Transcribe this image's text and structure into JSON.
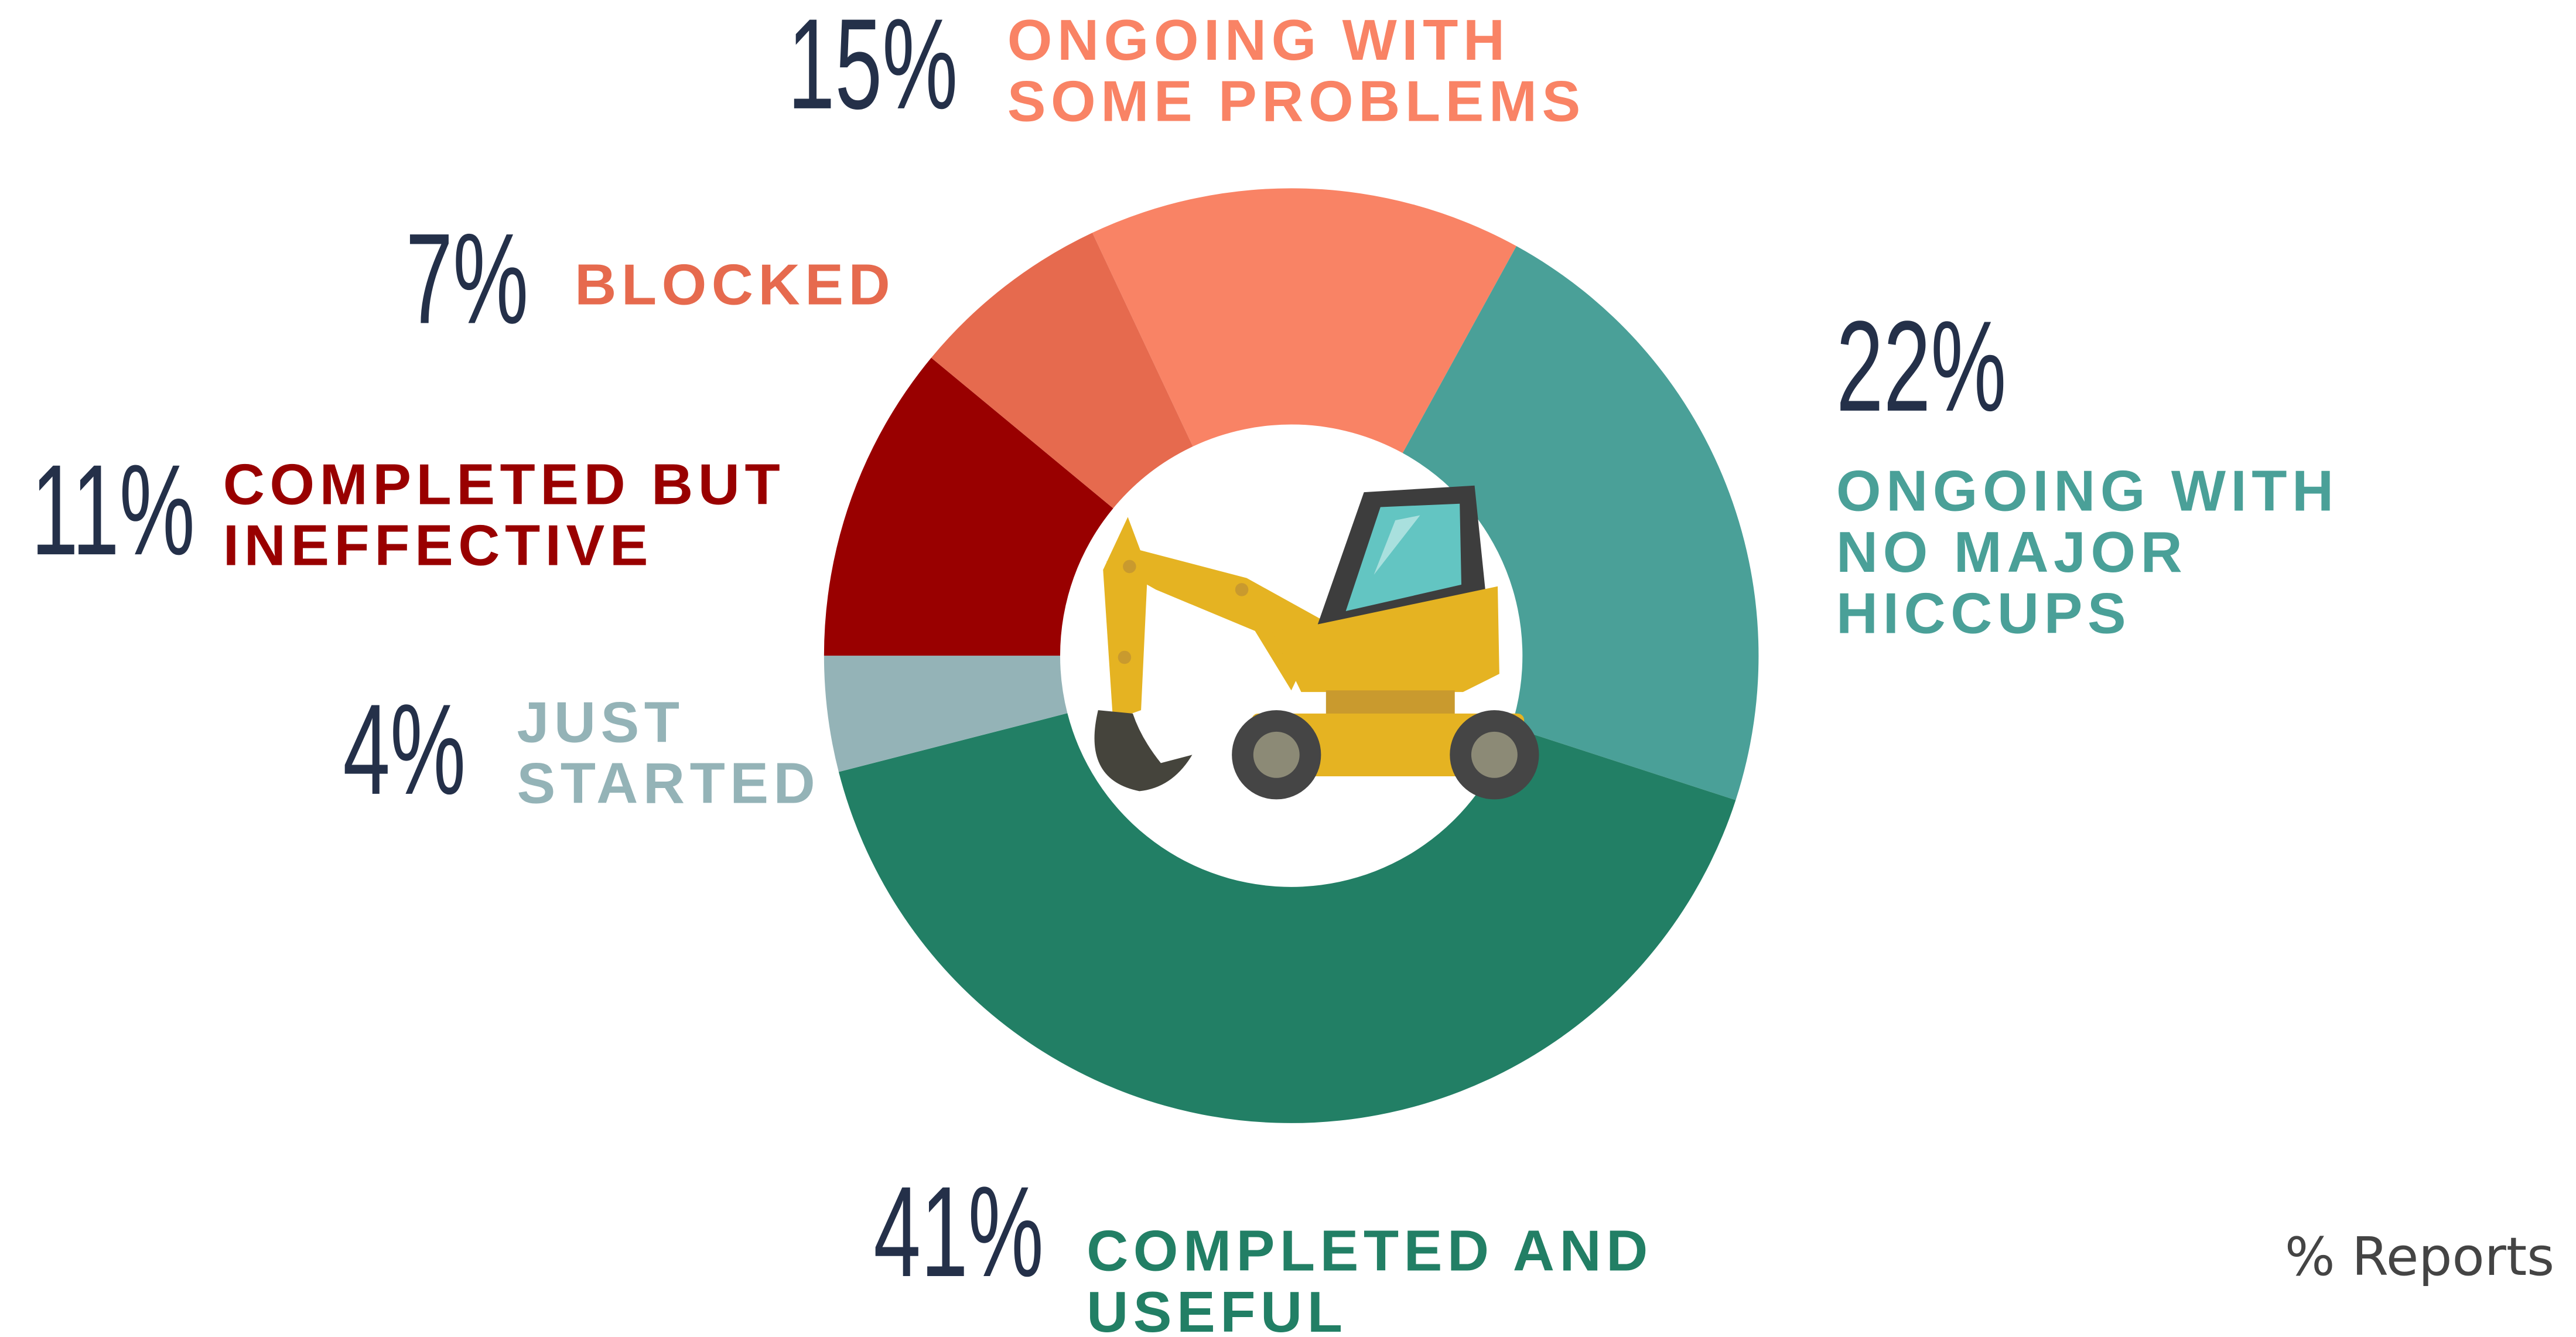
{
  "chart_data": {
    "type": "donut",
    "categories": [
      "ONGOING WITH SOME PROBLEMS",
      "ONGOING WITH NO MAJOR HICCUPS",
      "COMPLETED AND USEFUL",
      "JUST STARTED",
      "COMPLETED BUT INEFFECTIVE",
      "BLOCKED"
    ],
    "values": [
      15,
      22,
      41,
      4,
      11,
      7
    ],
    "value_labels": [
      "15%",
      "22%",
      "41%",
      "4%",
      "11%",
      "7%"
    ],
    "colors": [
      "#f98365",
      "#4aa098",
      "#227f65",
      "#94b3b7",
      "#990000",
      "#e66a4e"
    ],
    "caption": "% Reports"
  }
}
